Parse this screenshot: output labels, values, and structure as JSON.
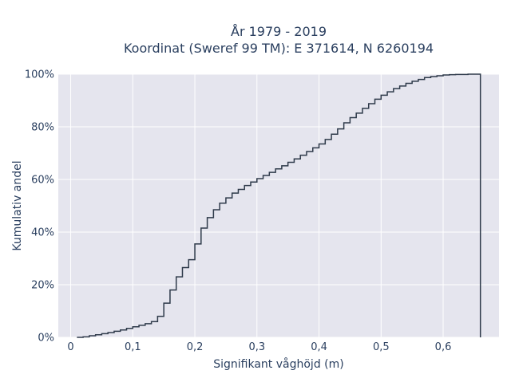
{
  "chart_data": {
    "type": "line",
    "title_line1": "År 1979 - 2019",
    "title_line2": "Koordinat (Sweref 99 TM): E 371614, N 6260194",
    "xlabel": "Signifikant våghöjd (m)",
    "ylabel": "Kumulativ andel",
    "xlim": [
      -0.02,
      0.69
    ],
    "ylim": [
      0,
      1.0
    ],
    "x_ticks": [
      0,
      0.1,
      0.2,
      0.3,
      0.4,
      0.5,
      0.6
    ],
    "x_tick_labels": [
      "0",
      "0,1",
      "0,2",
      "0,3",
      "0,4",
      "0,5",
      "0,6"
    ],
    "y_ticks": [
      0,
      0.2,
      0.4,
      0.6,
      0.8,
      1.0
    ],
    "y_tick_labels": [
      "0%",
      "20%",
      "40%",
      "60%",
      "80%",
      "100%"
    ],
    "grid": true,
    "colors": {
      "line": "#2e3a4a",
      "plot_bg": "#e5e5ee",
      "grid": "#ffffff",
      "text": "#2a3f5f"
    },
    "series": [
      {
        "step": "after",
        "x": [
          0.01,
          0.02,
          0.03,
          0.04,
          0.05,
          0.06,
          0.07,
          0.08,
          0.09,
          0.1,
          0.11,
          0.12,
          0.13,
          0.14,
          0.15,
          0.16,
          0.17,
          0.18,
          0.19,
          0.2,
          0.21,
          0.22,
          0.23,
          0.24,
          0.25,
          0.26,
          0.27,
          0.28,
          0.29,
          0.3,
          0.31,
          0.32,
          0.33,
          0.34,
          0.35,
          0.36,
          0.37,
          0.38,
          0.39,
          0.4,
          0.41,
          0.42,
          0.43,
          0.44,
          0.45,
          0.46,
          0.47,
          0.48,
          0.49,
          0.5,
          0.51,
          0.52,
          0.53,
          0.54,
          0.55,
          0.56,
          0.57,
          0.58,
          0.59,
          0.6,
          0.61,
          0.62,
          0.63,
          0.64,
          0.65,
          0.66
        ],
        "y": [
          0.0,
          0.002,
          0.006,
          0.01,
          0.014,
          0.018,
          0.023,
          0.028,
          0.034,
          0.04,
          0.046,
          0.052,
          0.06,
          0.08,
          0.13,
          0.18,
          0.23,
          0.265,
          0.295,
          0.355,
          0.415,
          0.455,
          0.485,
          0.51,
          0.53,
          0.548,
          0.562,
          0.577,
          0.59,
          0.603,
          0.615,
          0.627,
          0.64,
          0.652,
          0.665,
          0.678,
          0.692,
          0.706,
          0.72,
          0.735,
          0.752,
          0.772,
          0.792,
          0.815,
          0.835,
          0.852,
          0.87,
          0.888,
          0.905,
          0.92,
          0.933,
          0.945,
          0.955,
          0.965,
          0.973,
          0.98,
          0.987,
          0.991,
          0.994,
          0.997,
          0.998,
          0.999,
          0.999,
          1.0,
          1.0,
          0.0
        ]
      }
    ]
  }
}
